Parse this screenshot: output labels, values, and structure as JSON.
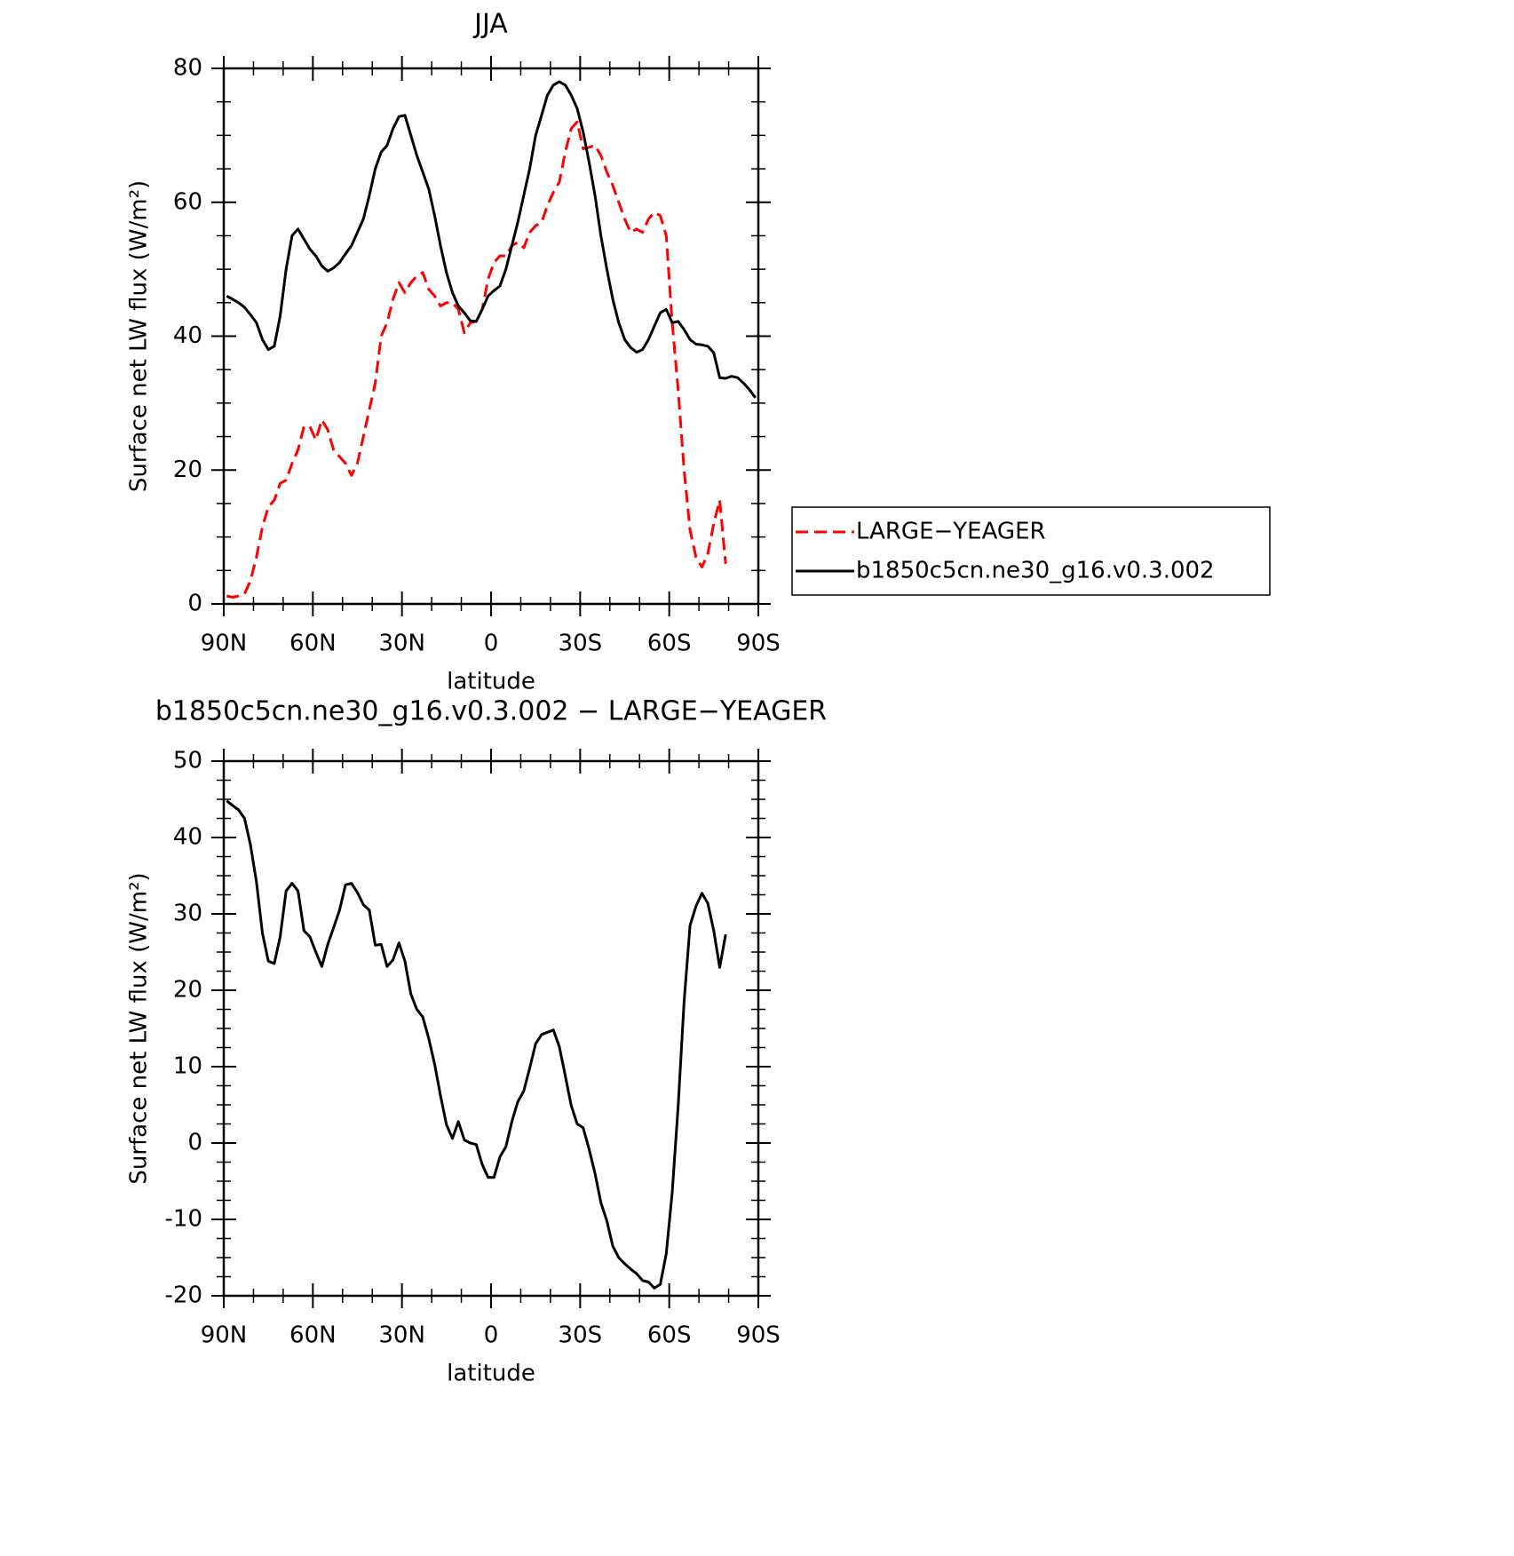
{
  "chart_data": [
    {
      "type": "line",
      "title": "JJA",
      "xlabel": "latitude",
      "ylabel": "Surface net LW flux (W/m²)",
      "x": [
        89,
        87,
        85,
        83,
        81,
        79,
        77,
        75,
        73,
        71,
        69,
        67,
        65,
        63,
        61,
        59,
        57,
        55,
        53,
        51,
        49,
        47,
        45,
        43,
        41,
        39,
        37,
        35,
        33,
        31,
        29,
        27,
        25,
        23,
        21,
        19,
        17,
        15,
        13,
        11,
        9,
        7,
        5,
        3,
        1,
        -1,
        -3,
        -5,
        -7,
        -9,
        -11,
        -13,
        -15,
        -17,
        -19,
        -21,
        -23,
        -25,
        -27,
        -29,
        -31,
        -33,
        -35,
        -37,
        -39,
        -41,
        -43,
        -45,
        -47,
        -49,
        -51,
        -53,
        -55,
        -57,
        -59,
        -61,
        -63,
        -65,
        -67,
        -69,
        -71,
        -73,
        -75,
        -77,
        -79,
        -81,
        -83,
        -85,
        -87,
        -89
      ],
      "series": [
        {
          "name": "LARGE−YEAGER",
          "color": "#ff0000",
          "linestyle": "dashed",
          "values": [
            1.2,
            1,
            1.2,
            1.5,
            3.5,
            7,
            11.5,
            14.5,
            15.5,
            18,
            18.5,
            21,
            23,
            26.5,
            26.5,
            24.5,
            27.5,
            26,
            23,
            22,
            21,
            19.2,
            21,
            25,
            29,
            33,
            40,
            42,
            45.5,
            48,
            46.5,
            48,
            49,
            49.5,
            47,
            46,
            44.5,
            45,
            45,
            44,
            40.5,
            42,
            42.2,
            44,
            48.5,
            51,
            52,
            52,
            53.5,
            54,
            53.2,
            55.5,
            56.5,
            57,
            59.5,
            61.5,
            63,
            67.5,
            71,
            72,
            68,
            68.2,
            68.5,
            67,
            64.5,
            62.5,
            60,
            57.5,
            55.5,
            56,
            55.5,
            57.5,
            58.5,
            58,
            55,
            42,
            32,
            20,
            11,
            7,
            5.5,
            7.5,
            12,
            15.5,
            6,
            null,
            null,
            null,
            null,
            null
          ]
        },
        {
          "name": "b1850c5cn.ne30_g16.v0.3.002",
          "color": "#000000",
          "linestyle": "solid",
          "values": [
            46,
            45.5,
            45,
            44.3,
            43.2,
            42,
            39.5,
            38,
            38.5,
            43,
            50,
            55,
            56,
            54.5,
            53,
            52,
            50.5,
            49.7,
            50.2,
            51,
            52.3,
            53.5,
            55.5,
            57.5,
            61,
            65,
            67.5,
            68.5,
            71,
            72.8,
            73,
            70,
            67,
            64.5,
            62,
            58,
            53.5,
            49.5,
            46.5,
            44.5,
            43.5,
            42.3,
            42.2,
            44,
            46,
            46.8,
            47.5,
            50,
            53.5,
            57,
            61,
            65,
            70,
            73,
            76,
            77.5,
            78,
            77.5,
            76,
            74,
            70.5,
            66,
            61,
            55,
            50,
            45.5,
            42,
            39.5,
            38.3,
            37.6,
            38,
            39.5,
            41.5,
            43.5,
            44,
            42,
            42.2,
            41,
            39.5,
            38.8,
            38.7,
            38.5,
            37.5,
            33.8,
            33.7,
            34,
            33.8,
            33,
            32,
            30.8
          ]
        }
      ],
      "xlim": [
        90,
        -90
      ],
      "xticks": [
        {
          "value": 90,
          "label": "90N"
        },
        {
          "value": 60,
          "label": "60N"
        },
        {
          "value": 30,
          "label": "30N"
        },
        0,
        {
          "value": -30,
          "label": "30S"
        },
        {
          "value": -60,
          "label": "60S"
        },
        {
          "value": -90,
          "label": "90S"
        }
      ],
      "ylim": [
        0,
        80
      ],
      "yticks": [
        0,
        20,
        40,
        60,
        80
      ],
      "legend": "right"
    },
    {
      "type": "line",
      "title": "b1850c5cn.ne30_g16.v0.3.002 − LARGE−YEAGER",
      "xlabel": "latitude",
      "ylabel": "Surface net LW flux (W/m²)",
      "x": [
        89,
        87,
        85,
        83,
        81,
        79,
        77,
        75,
        73,
        71,
        69,
        67,
        65,
        63,
        61,
        59,
        57,
        55,
        53,
        51,
        49,
        47,
        45,
        43,
        41,
        39,
        37,
        35,
        33,
        31,
        29,
        27,
        25,
        23,
        21,
        19,
        17,
        15,
        13,
        11,
        9,
        7,
        5,
        3,
        1,
        -1,
        -3,
        -5,
        -7,
        -9,
        -11,
        -13,
        -15,
        -17,
        -19,
        -21,
        -23,
        -25,
        -27,
        -29,
        -31,
        -33,
        -35,
        -37,
        -39,
        -41,
        -43,
        -45,
        -47,
        -49,
        -51,
        -53,
        -55,
        -57,
        -59,
        -61,
        -63,
        -65,
        -67,
        -69,
        -71,
        -73,
        -75,
        -77,
        -79,
        -81,
        -83,
        -85,
        -87,
        -89
      ],
      "series": [
        {
          "color": "#000000",
          "linestyle": "solid",
          "values": [
            44.8,
            44.2,
            43.6,
            42.5,
            39,
            34.2,
            27.5,
            23.8,
            23.5,
            27,
            33,
            34,
            33,
            27.8,
            27,
            25,
            23.1,
            26,
            28.2,
            30.5,
            33.8,
            34,
            32.8,
            31.2,
            30.5,
            25.9,
            26,
            23.1,
            24,
            26.2,
            23.8,
            19.5,
            17.5,
            16.5,
            13.7,
            10.3,
            6.2,
            2.4,
            0.6,
            2.8,
            0.4,
            0,
            -0.2,
            -2.8,
            -4.5,
            -4.5,
            -1.8,
            -0.5,
            2.8,
            5.4,
            6.8,
            9.8,
            13,
            14.2,
            14.5,
            14.8,
            12.6,
            8.8,
            4.9,
            2.5,
            2,
            -0.8,
            -4,
            -7.8,
            -10.2,
            -13.5,
            -15,
            -15.8,
            -16.5,
            -17.1,
            -18,
            -18.2,
            -19,
            -18.5,
            -14.5,
            -6.5,
            4.8,
            18.5,
            28.5,
            31,
            32.7,
            31.4,
            27.8,
            23,
            27.3,
            null,
            null,
            null,
            null,
            null
          ]
        }
      ],
      "xlim": [
        90,
        -90
      ],
      "xticks": [
        {
          "value": 90,
          "label": "90N"
        },
        {
          "value": 60,
          "label": "60N"
        },
        {
          "value": 30,
          "label": "30N"
        },
        0,
        {
          "value": -30,
          "label": "30S"
        },
        {
          "value": -60,
          "label": "60S"
        },
        {
          "value": -90,
          "label": "90S"
        }
      ],
      "ylim": [
        -20,
        50
      ],
      "yticks": [
        -20,
        -10,
        0,
        10,
        20,
        30,
        40,
        50
      ]
    }
  ]
}
